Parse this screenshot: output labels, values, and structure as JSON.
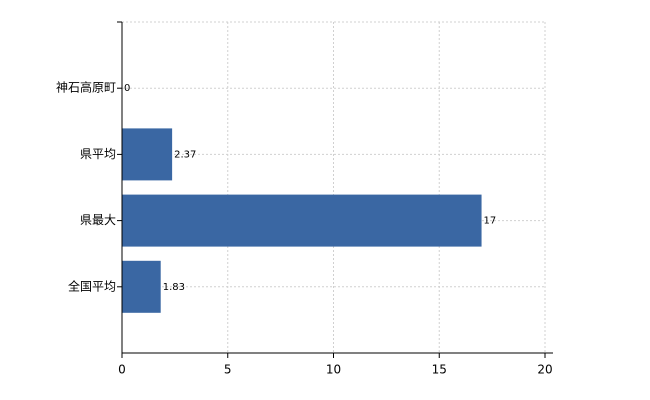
{
  "chart_data": {
    "type": "bar",
    "orientation": "horizontal",
    "categories": [
      "神石高原町",
      "県平均",
      "県最大",
      "全国平均"
    ],
    "values": [
      0,
      2.37,
      17,
      1.83
    ],
    "color": "#3a67a3",
    "xlim": [
      0,
      20
    ],
    "xticks": [
      0,
      5,
      10,
      15,
      20
    ],
    "grid": true
  }
}
